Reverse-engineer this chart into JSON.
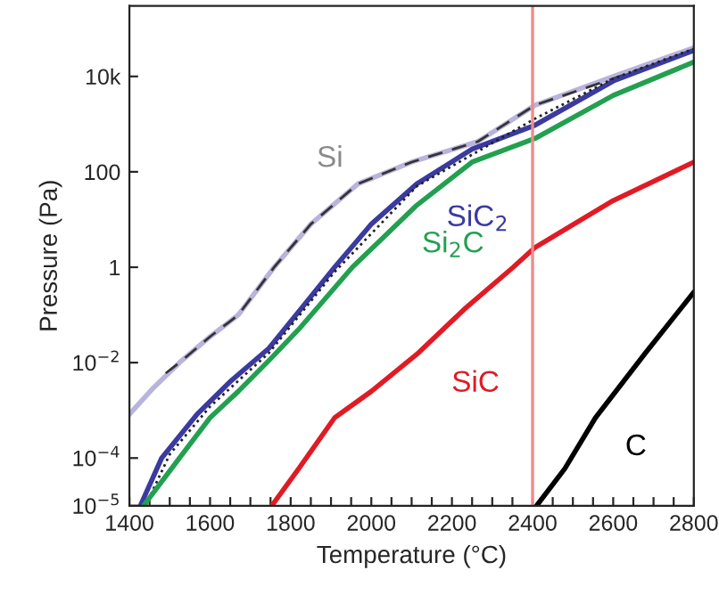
{
  "chart_data": {
    "type": "line",
    "xlabel": "Temperature (°C)",
    "ylabel": "Pressure (Pa)",
    "log": "y",
    "xlim": [
      1400,
      2800
    ],
    "xticks": [
      1400,
      {
        "value": 1450,
        "label": null
      },
      1600,
      {
        "value": 1500,
        "label": null
      },
      {
        "value": 1550,
        "label": null
      },
      {
        "value": 1650,
        "label": null
      },
      {
        "value": 1700,
        "label": null
      },
      {
        "value": 1750,
        "label": null
      },
      1800,
      {
        "value": 1850,
        "label": null
      },
      {
        "value": 1900,
        "label": null
      },
      {
        "value": 1950,
        "label": null
      },
      2000,
      {
        "value": 2050,
        "label": null
      },
      {
        "value": 2100,
        "label": null
      },
      {
        "value": 2150,
        "label": null
      },
      2200,
      {
        "value": 2250,
        "label": null
      },
      {
        "value": 2300,
        "label": null
      },
      {
        "value": 2350,
        "label": null
      },
      2400,
      {
        "value": 2450,
        "label": null
      },
      {
        "value": 2500,
        "label": null
      },
      {
        "value": 2550,
        "label": null
      },
      2600,
      {
        "value": 2650,
        "label": null
      },
      {
        "value": 2700,
        "label": null
      },
      {
        "value": 2750,
        "label": null
      },
      2800
    ],
    "ylim": [
      1e-05,
      300000
    ],
    "yticks": [
      {
        "value": 1e-05,
        "label": "10$^{−5}$"
      },
      {
        "value": 0.0001,
        "label": "10$^{−4}$"
      },
      {
        "value": 0.01,
        "label": "10$^{−2}$"
      },
      1,
      100,
      {
        "value": 10000,
        "label": "10k"
      }
    ],
    "grid": false,
    "legend": false,
    "series": [
      {
        "name": "Si",
        "color": "#b9b4dc",
        "x": [
          1400,
          1460,
          1524,
          1600,
          1670,
          1759,
          1850,
          1967,
          2100,
          2264,
          2406,
          2600,
          2800
        ],
        "values": [
          0.00083,
          0.003,
          0.01,
          0.035,
          0.1,
          1,
          8,
          56,
          160,
          430,
          2500,
          10000,
          40000
        ]
      },
      {
        "color": "#333333",
        "line_style": "dashed",
        "x": [
          1490,
          1524,
          1600,
          1670,
          1759,
          1850,
          1967,
          2100,
          2264,
          2406,
          2600,
          2800
        ],
        "values": [
          0.006,
          0.01,
          0.035,
          0.1,
          1,
          8,
          56,
          160,
          430,
          2500,
          9000,
          35000
        ]
      },
      {
        "name": "SiC$_{2}$",
        "color": "#3a3aa0",
        "x": [
          1427,
          1480,
          1568,
          1650,
          1746,
          1830,
          1909,
          2000,
          2113,
          2250,
          2406,
          2600,
          2800
        ],
        "values": [
          1e-05,
          0.0001,
          0.00083,
          0.004,
          0.02,
          0.15,
          1,
          8,
          56,
          300,
          950,
          8000,
          35000
        ]
      },
      {
        "color": "#222222",
        "line_style": "dotted",
        "x": [
          1440,
          1500,
          1600,
          1746,
          1909,
          2113,
          2406,
          2600,
          2800
        ],
        "values": [
          1e-05,
          0.00012,
          0.0012,
          0.016,
          0.8,
          50,
          1300,
          9000,
          38000
        ]
      },
      {
        "name": "Si$_{2}$C",
        "color": "#22a050",
        "x": [
          1435,
          1524,
          1600,
          1670,
          1750,
          1820,
          1953,
          2113,
          2250,
          2406,
          2600,
          2800
        ],
        "values": [
          1e-05,
          0.0001,
          0.0007,
          0.0025,
          0.012,
          0.05,
          1,
          20,
          160,
          500,
          4000,
          20000
        ]
      },
      {
        "name": "SiC",
        "color": "#e01b24",
        "x": [
          1753,
          1820,
          1909,
          2000,
          2113,
          2230,
          2352,
          2406,
          2600,
          2800
        ],
        "values": [
          1e-05,
          6e-05,
          0.0007,
          0.0025,
          0.015,
          0.13,
          1,
          2.6,
          25,
          160
        ]
      },
      {
        "name": "C",
        "color": "#000000",
        "x": [
          2410,
          2480,
          2556,
          2680,
          2800
        ],
        "values": [
          1e-05,
          6e-05,
          0.0007,
          0.016,
          0.3
        ]
      }
    ],
    "ref_lines": [
      {
        "axis": "x",
        "value": 2400,
        "color": "#f08a8a"
      }
    ]
  }
}
